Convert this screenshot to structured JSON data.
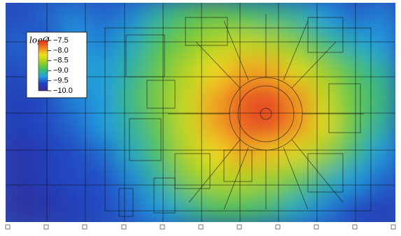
{
  "chart_data": {
    "type": "heatmap",
    "colorbar_title": "logØ",
    "zlim": [
      -10.0,
      -7.5
    ],
    "zticks": [
      {
        "value": -7.5,
        "label": "−7.5"
      },
      {
        "value": -8.0,
        "label": "−8.0"
      },
      {
        "value": -8.5,
        "label": "−8.5"
      },
      {
        "value": -9.0,
        "label": "−9.0"
      },
      {
        "value": -9.5,
        "label": "−9.5"
      },
      {
        "value": -10.0,
        "label": "−10.0"
      }
    ],
    "colorscale": [
      "#3a2a8c",
      "#2040c0",
      "#20a0e0",
      "#40c060",
      "#a0d020",
      "#f0e020",
      "#f08020",
      "#e03020"
    ],
    "z": [
      [
        -9.6,
        -9.5,
        -9.4,
        -9.5,
        -9.4,
        -9.1,
        -8.9,
        -8.8,
        -8.9,
        -9.0,
        -9.1,
        -9.3,
        -9.5,
        -9.4
      ],
      [
        -9.5,
        -9.6,
        -9.3,
        -9.4,
        -9.2,
        -8.9,
        -8.7,
        -8.5,
        -8.4,
        -8.5,
        -8.7,
        -9.0,
        -9.2,
        -9.3
      ],
      [
        -9.6,
        -9.5,
        -9.2,
        -9.3,
        -9.1,
        -8.8,
        -8.5,
        -8.2,
        -8.0,
        -8.0,
        -8.3,
        -8.6,
        -8.9,
        -9.1
      ],
      [
        -9.7,
        -9.6,
        -9.4,
        -9.3,
        -9.0,
        -8.7,
        -8.4,
        -8.0,
        -7.7,
        -7.6,
        -7.9,
        -8.4,
        -8.8,
        -9.0
      ],
      [
        -9.7,
        -9.6,
        -9.5,
        -9.3,
        -9.1,
        -8.8,
        -8.4,
        -8.0,
        -7.7,
        -7.6,
        -7.9,
        -8.3,
        -8.8,
        -9.1
      ],
      [
        -9.8,
        -9.7,
        -9.6,
        -9.5,
        -9.2,
        -8.9,
        -8.5,
        -8.2,
        -8.0,
        -8.1,
        -8.3,
        -8.6,
        -9.0,
        -9.3
      ],
      [
        -9.8,
        -9.7,
        -9.6,
        -9.6,
        -9.4,
        -9.1,
        -8.7,
        -8.5,
        -8.5,
        -8.6,
        -8.8,
        -9.1,
        -9.3,
        -9.5
      ],
      [
        -9.9,
        -9.8,
        -9.7,
        -9.6,
        -9.5,
        -9.3,
        -9.1,
        -8.9,
        -8.9,
        -9.0,
        -9.2,
        -9.4,
        -9.6,
        -9.7
      ]
    ]
  }
}
